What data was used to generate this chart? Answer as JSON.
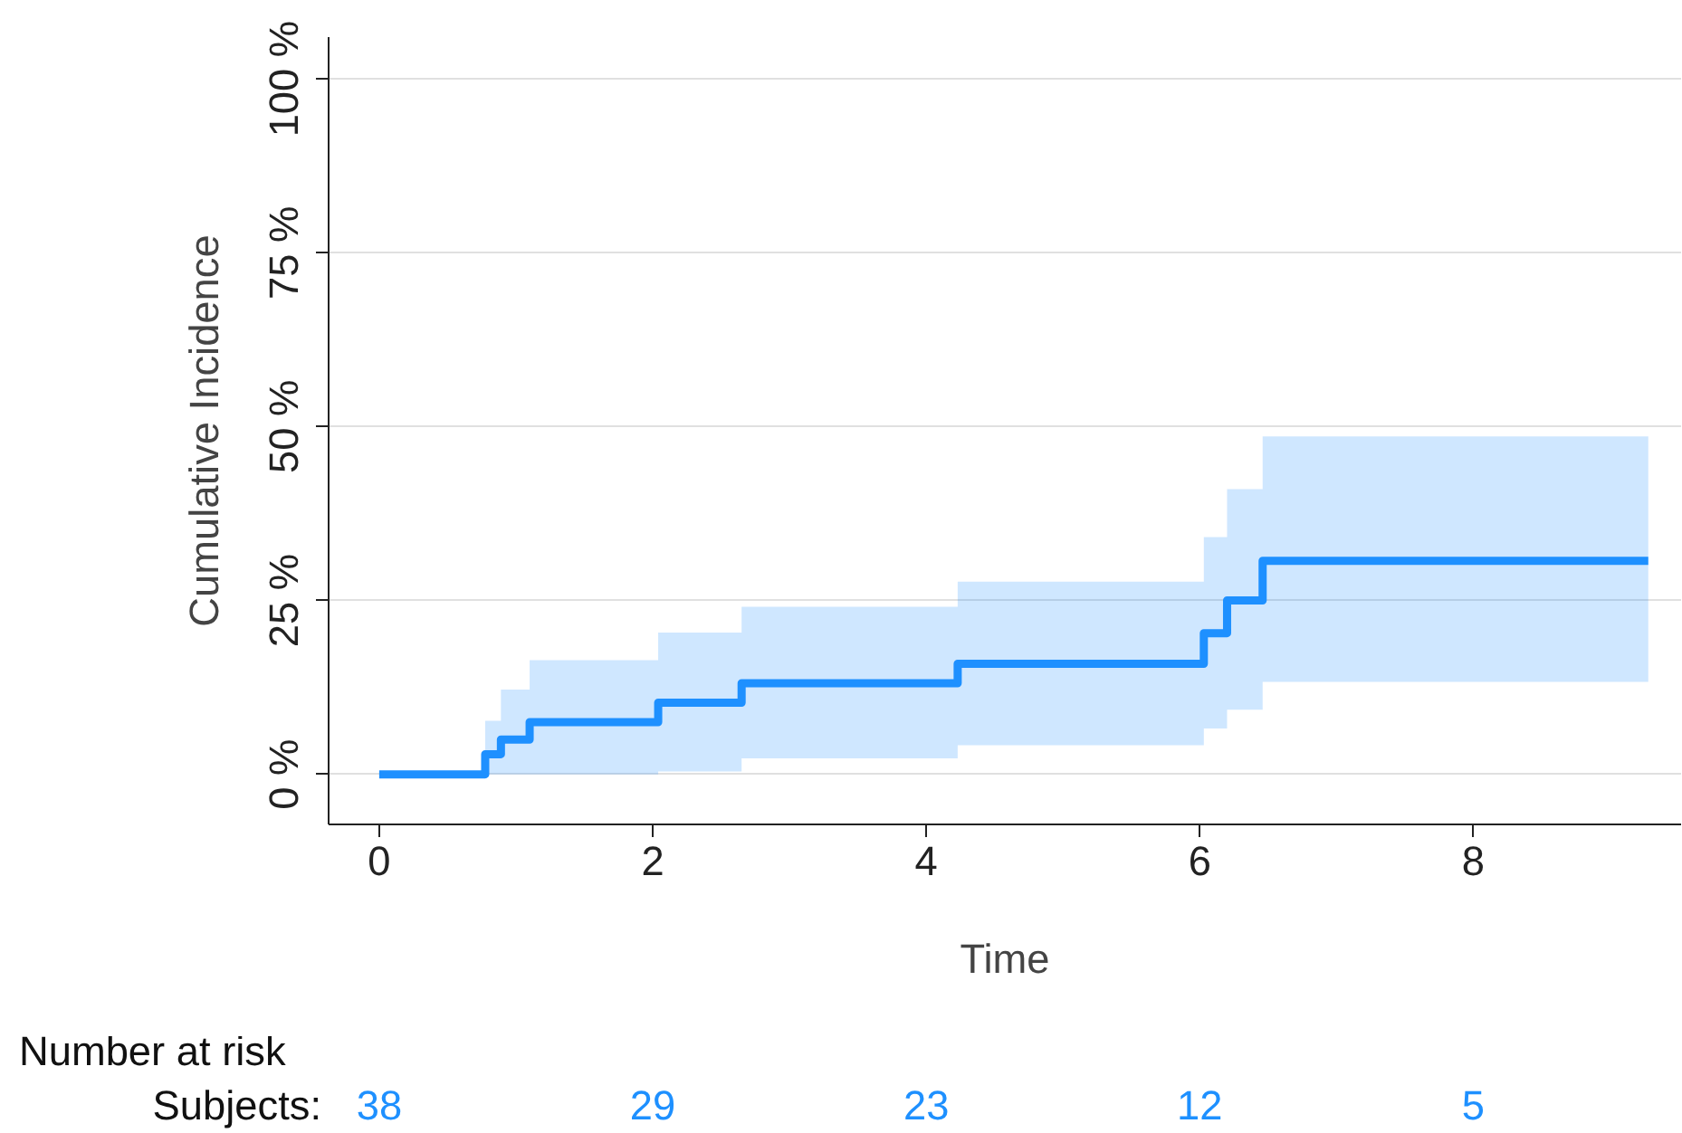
{
  "chart_data": {
    "type": "step",
    "xlabel": "Time",
    "ylabel": "Cumulative Incidence",
    "series": [
      {
        "color": "#1e90ff",
        "x": [
          0,
          0.775,
          0.89,
          1.1,
          2.04,
          2.65,
          4.23,
          6.03,
          6.2,
          6.46,
          9.28
        ],
        "values": [
          0,
          2.9,
          5,
          7.5,
          10.3,
          13.1,
          15.9,
          20.3,
          25,
          30.7,
          30.7
        ],
        "lower": [
          0,
          0,
          0,
          0,
          0.4,
          2.3,
          4.2,
          6.6,
          9.3,
          13.3,
          13.3
        ],
        "upper": [
          0,
          7.7,
          12.2,
          16.4,
          20.4,
          24.1,
          27.7,
          34.1,
          41,
          48.6,
          48.6
        ]
      }
    ],
    "xlim": [
      -0.37,
      9.52
    ],
    "ylim": [
      -7.2,
      106
    ],
    "xticks": [
      0,
      2,
      4,
      6,
      8
    ],
    "yticks": [
      {
        "value": 0,
        "label": "0 %"
      },
      {
        "value": 25,
        "label": "25 %"
      },
      {
        "value": 50,
        "label": "50 %"
      },
      {
        "value": 75,
        "label": "75 %"
      },
      {
        "value": 100,
        "label": "100 %"
      }
    ],
    "grid": "y",
    "annotations": [
      "Number at risk",
      "Subjects:",
      "38",
      "29",
      "23",
      "12",
      "5"
    ]
  }
}
